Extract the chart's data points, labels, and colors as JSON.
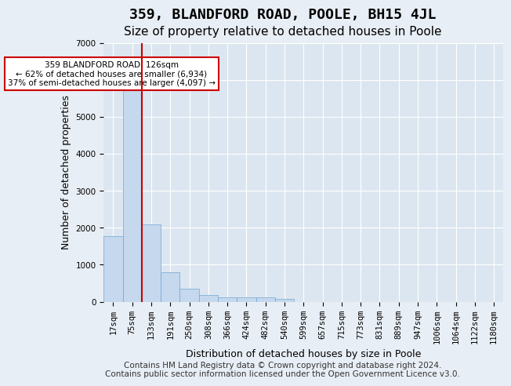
{
  "title": "359, BLANDFORD ROAD, POOLE, BH15 4JL",
  "subtitle": "Size of property relative to detached houses in Poole",
  "xlabel": "Distribution of detached houses by size in Poole",
  "ylabel": "Number of detached properties",
  "footer_line1": "Contains HM Land Registry data © Crown copyright and database right 2024.",
  "footer_line2": "Contains public sector information licensed under the Open Government Licence v3.0.",
  "bin_labels": [
    "17sqm",
    "75sqm",
    "133sqm",
    "191sqm",
    "250sqm",
    "308sqm",
    "366sqm",
    "424sqm",
    "482sqm",
    "540sqm",
    "599sqm",
    "657sqm",
    "715sqm",
    "773sqm",
    "831sqm",
    "889sqm",
    "947sqm",
    "1006sqm",
    "1064sqm",
    "1122sqm",
    "1180sqm"
  ],
  "bar_heights": [
    1780,
    5780,
    2080,
    790,
    350,
    190,
    120,
    110,
    110,
    80,
    0,
    0,
    0,
    0,
    0,
    0,
    0,
    0,
    0,
    0,
    0
  ],
  "bar_color": "#c5d8ed",
  "bar_edge_color": "#6fa8d2",
  "property_size": 126,
  "property_bin_index": 1,
  "red_line_x": 1,
  "annotation_text": "359 BLANDFORD ROAD: 126sqm\n← 62% of detached houses are smaller (6,934)\n37% of semi-detached houses are larger (4,097) →",
  "annotation_box_color": "#ffffff",
  "annotation_box_edge_color": "#cc0000",
  "ylim": [
    0,
    7000
  ],
  "yticks": [
    0,
    1000,
    2000,
    3000,
    4000,
    5000,
    6000,
    7000
  ],
  "background_color": "#e8eef5",
  "plot_background_color": "#dce6f0",
  "grid_color": "#ffffff",
  "red_line_color": "#cc0000",
  "title_fontsize": 13,
  "subtitle_fontsize": 11,
  "axis_label_fontsize": 9,
  "tick_fontsize": 7.5,
  "footer_fontsize": 7.5
}
